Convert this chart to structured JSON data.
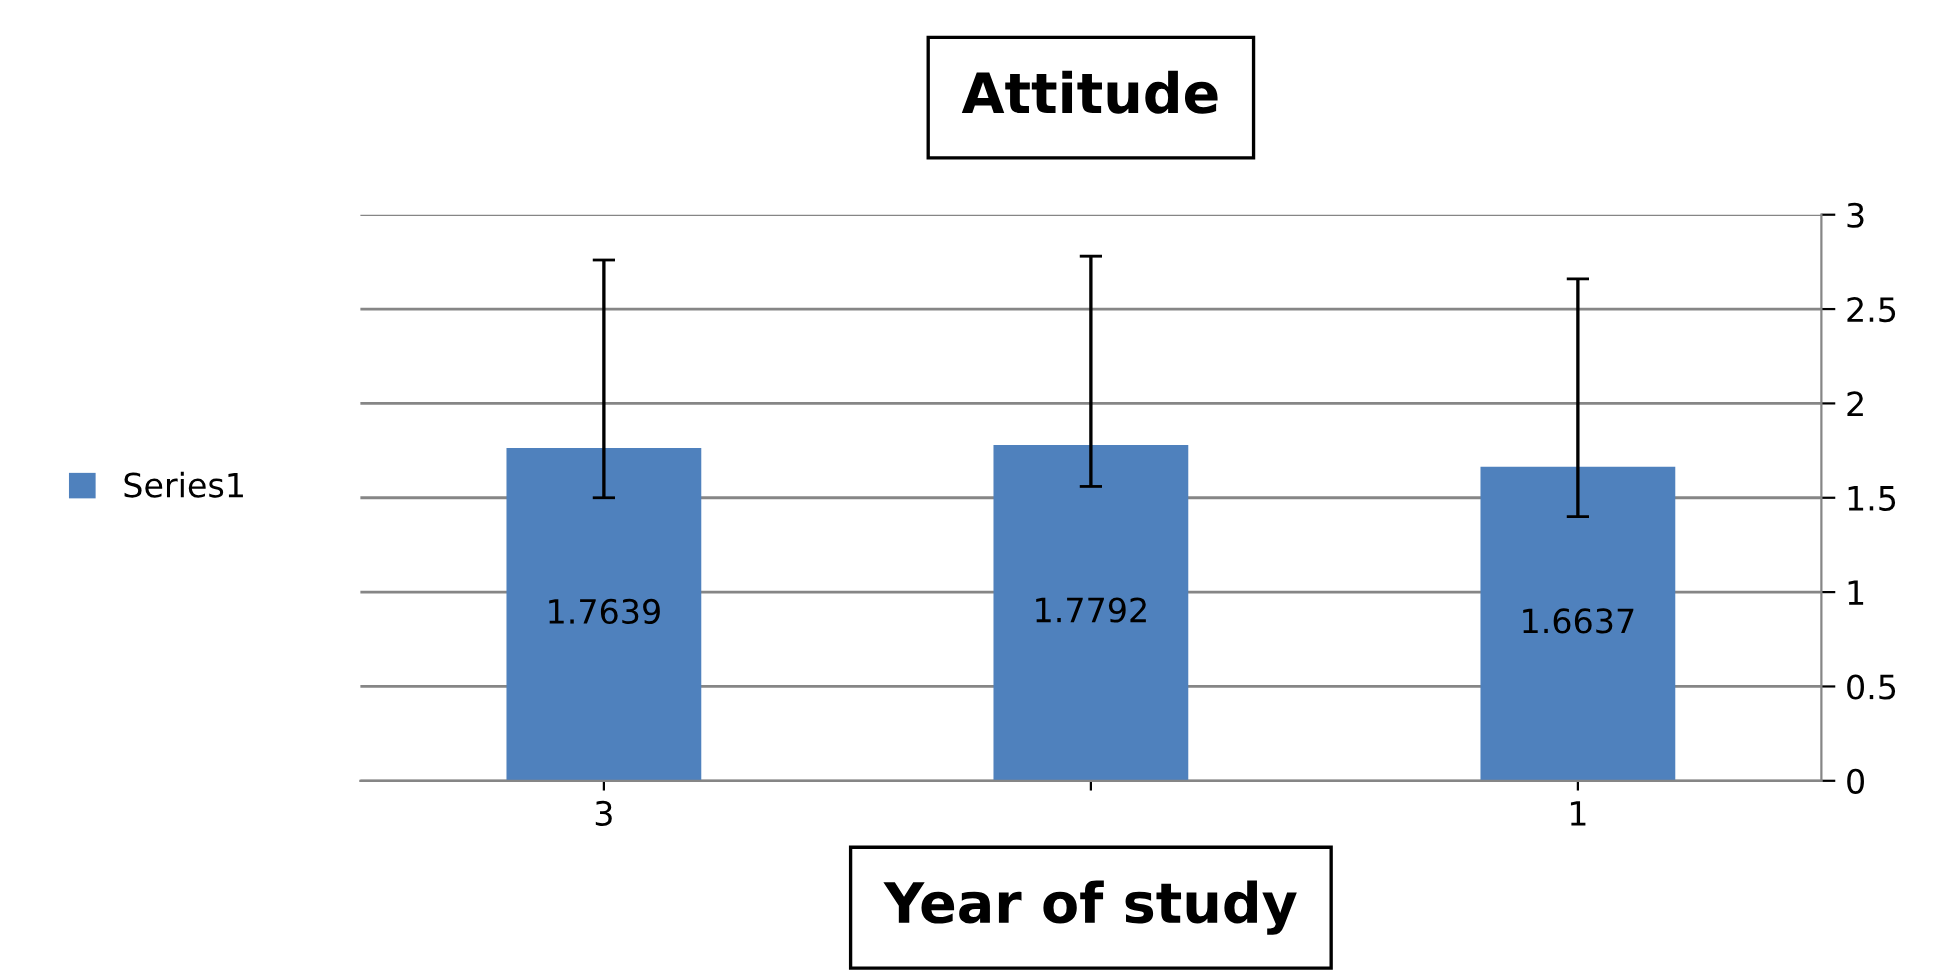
{
  "chart_data": {
    "type": "bar",
    "title": "Attitude",
    "xlabel": "Year of study",
    "categories": [
      "3",
      null,
      "1"
    ],
    "series": [
      {
        "name": "Series1",
        "color": "#4f81bd",
        "values": [
          1.7639,
          1.7792,
          1.6637
        ],
        "errors": [
          [
            1.5,
            2.76
          ],
          [
            1.56,
            2.78
          ],
          [
            1.4,
            2.66
          ]
        ]
      }
    ],
    "data_labels": true,
    "ylim": [
      0,
      3
    ],
    "yticks": [
      0,
      0.5,
      1,
      1.5,
      2,
      2.5,
      3
    ],
    "grid": "y",
    "legend": "left"
  }
}
